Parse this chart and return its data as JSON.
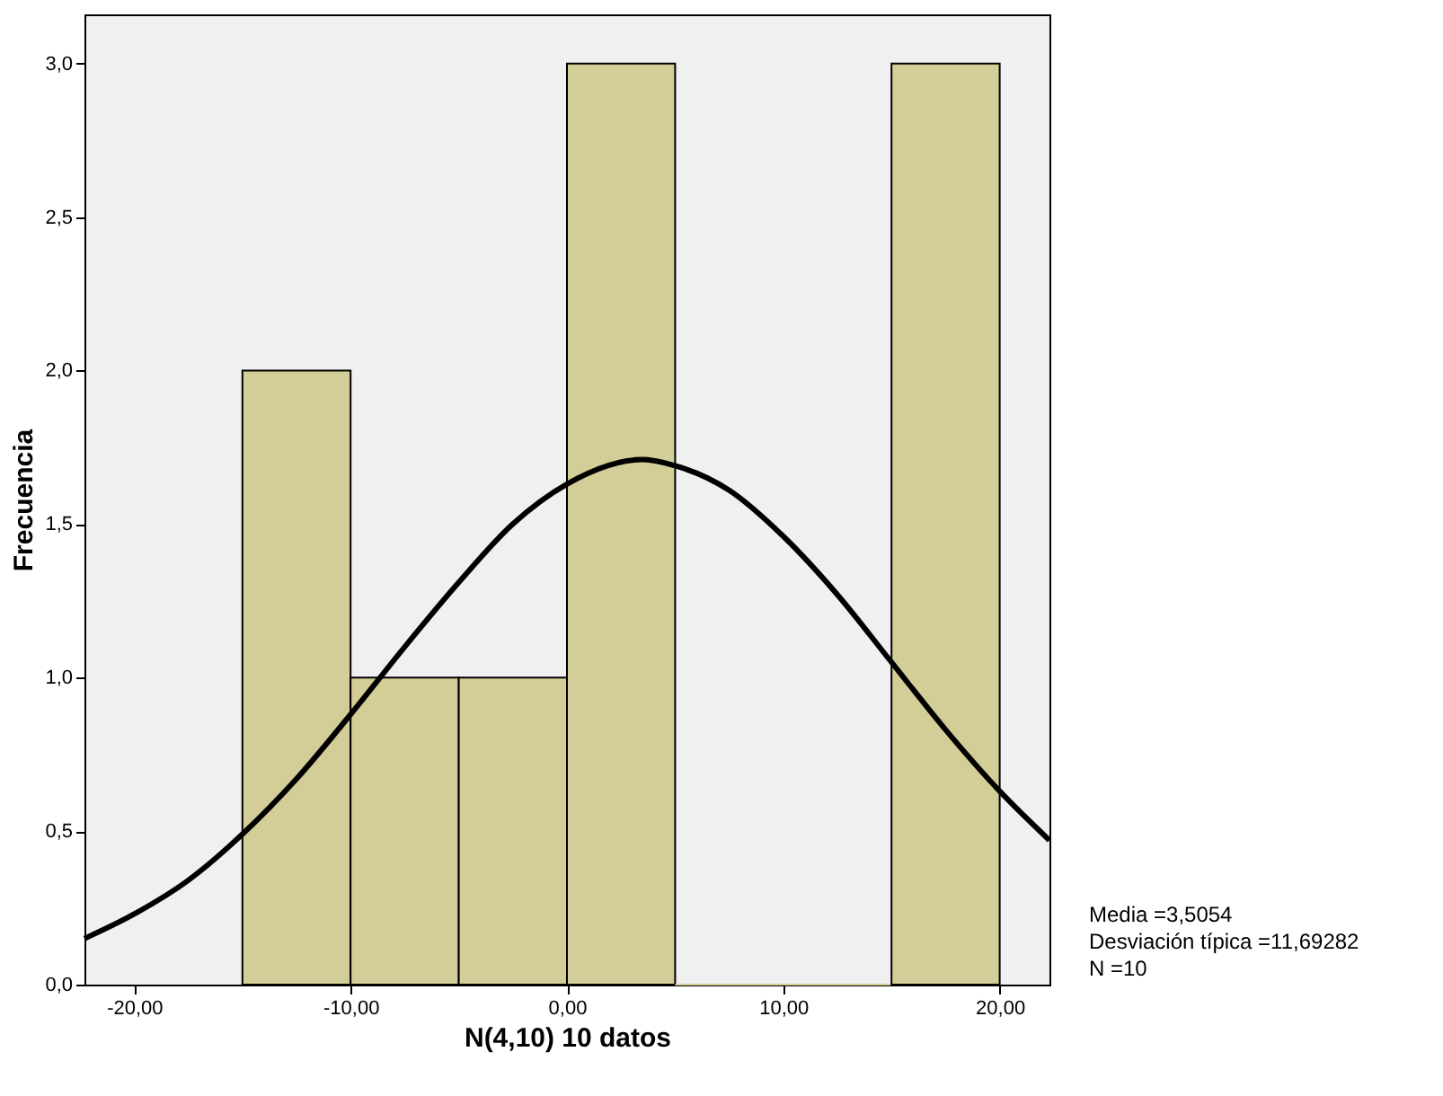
{
  "chart_data": {
    "type": "histogram",
    "xlabel": "N(4,10) 10 datos",
    "ylabel": "Frecuencia",
    "bins": [
      -15,
      -10,
      -5,
      0,
      5,
      10,
      15,
      20
    ],
    "values": [
      2,
      1,
      1,
      3,
      0,
      0,
      3
    ],
    "color": "#d3ce97",
    "series": [
      {
        "type": "line",
        "color": "#000000",
        "x": [
          -22.3,
          -20,
          -17.5,
          -15,
          -12.5,
          -10,
          -7.5,
          -5,
          -2.5,
          0,
          3.5,
          5,
          7.5,
          10,
          12.5,
          15,
          17.5,
          20,
          22.3
        ],
        "values": [
          0.15,
          0.23,
          0.34,
          0.49,
          0.67,
          0.88,
          1.1,
          1.31,
          1.5,
          1.63,
          1.71,
          1.69,
          1.61,
          1.46,
          1.27,
          1.05,
          0.83,
          0.63,
          0.47
        ]
      }
    ],
    "xlim": [
      -22.3,
      22.3
    ],
    "ylim": [
      0,
      3.16
    ],
    "xticks": [
      {
        "value": -20,
        "label": "-20,00"
      },
      {
        "value": -10,
        "label": "-10,00"
      },
      {
        "value": 0,
        "label": "0,00"
      },
      {
        "value": 10,
        "label": "10,00"
      },
      {
        "value": 20,
        "label": "20,00"
      }
    ],
    "yticks": [
      {
        "value": 0,
        "label": "0,0"
      },
      {
        "value": 0.5,
        "label": "0,5"
      },
      {
        "value": 1,
        "label": "1,0"
      },
      {
        "value": 1.5,
        "label": "1,5"
      },
      {
        "value": 2,
        "label": "2,0"
      },
      {
        "value": 2.5,
        "label": "2,5"
      },
      {
        "value": 3,
        "label": "3,0"
      }
    ],
    "grid": false,
    "annotations": [
      "Media =3,5054",
      "Desviación típica =11,69282",
      "N =10"
    ]
  }
}
